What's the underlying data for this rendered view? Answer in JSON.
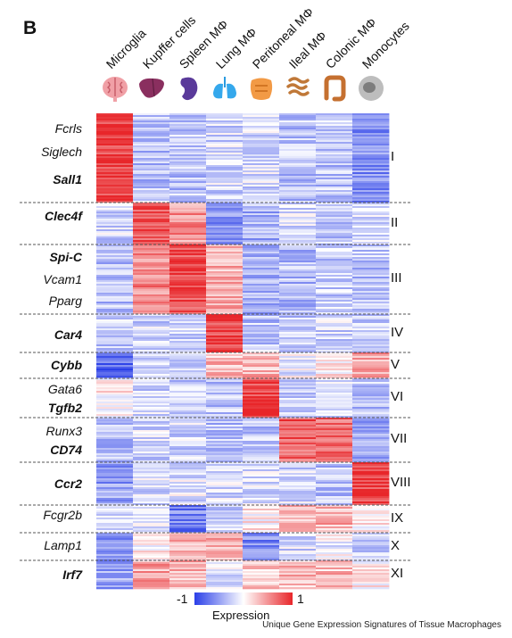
{
  "panel_letter": "B",
  "caption": "Unique Gene Expression Signatures of Tissue Macrophages",
  "chart_data": {
    "type": "heatmap",
    "title": "",
    "columns": [
      "Microglia",
      "Kupffer cells",
      "Spleen MΦ",
      "Lung MΦ",
      "Peritoneal MΦ",
      "Ileal MΦ",
      "Colonic MΦ",
      "Monocytes"
    ],
    "icons": [
      "brain-icon",
      "liver-icon",
      "spleen-icon",
      "lung-icon",
      "peritoneum-icon",
      "intestine-icon",
      "colon-icon",
      "monocyte-icon"
    ],
    "clusters": [
      {
        "name": "I",
        "genes": [
          {
            "name": "Fcrls",
            "bold": false
          },
          {
            "name": "Siglech",
            "bold": false
          },
          {
            "name": "Sall1",
            "bold": true
          }
        ],
        "mean_expression": [
          0.9,
          -0.3,
          -0.3,
          -0.2,
          -0.2,
          -0.3,
          -0.3,
          -0.55
        ]
      },
      {
        "name": "II",
        "genes": [
          {
            "name": "Clec4f",
            "bold": true
          }
        ],
        "mean_expression": [
          -0.2,
          0.8,
          0.5,
          -0.5,
          -0.4,
          -0.2,
          -0.3,
          -0.2
        ]
      },
      {
        "name": "III",
        "genes": [
          {
            "name": "Spi-C",
            "bold": true
          },
          {
            "name": "Vcam1",
            "bold": false
          },
          {
            "name": "Pparg",
            "bold": false
          }
        ],
        "mean_expression": [
          -0.3,
          0.55,
          0.85,
          0.35,
          -0.45,
          -0.35,
          -0.25,
          -0.3
        ]
      },
      {
        "name": "IV",
        "genes": [
          {
            "name": "Car4",
            "bold": true
          }
        ],
        "mean_expression": [
          -0.25,
          -0.2,
          -0.25,
          0.9,
          -0.3,
          -0.3,
          -0.2,
          -0.3
        ]
      },
      {
        "name": "V",
        "genes": [
          {
            "name": "Cybb",
            "bold": true
          }
        ],
        "mean_expression": [
          -0.75,
          -0.2,
          -0.2,
          0.3,
          0.35,
          -0.1,
          0.05,
          0.4
        ]
      },
      {
        "name": "VI",
        "genes": [
          {
            "name": "Gata6",
            "bold": false
          },
          {
            "name": "Tgfb2",
            "bold": true
          }
        ],
        "mean_expression": [
          0.05,
          -0.2,
          -0.3,
          -0.3,
          0.9,
          -0.3,
          -0.2,
          -0.3
        ]
      },
      {
        "name": "VII",
        "genes": [
          {
            "name": "Runx3",
            "bold": false
          },
          {
            "name": "CD74",
            "bold": true
          }
        ],
        "mean_expression": [
          -0.35,
          -0.2,
          -0.2,
          -0.3,
          -0.3,
          0.75,
          0.65,
          -0.4
        ]
      },
      {
        "name": "VIII",
        "genes": [
          {
            "name": "Ccr2",
            "bold": true
          }
        ],
        "mean_expression": [
          -0.5,
          -0.2,
          -0.15,
          -0.2,
          -0.2,
          -0.2,
          -0.3,
          0.9
        ]
      },
      {
        "name": "IX",
        "genes": [
          {
            "name": "Fcgr2b",
            "bold": false
          }
        ],
        "mean_expression": [
          -0.2,
          -0.1,
          -0.65,
          -0.25,
          0.1,
          0.3,
          0.35,
          0.1
        ]
      },
      {
        "name": "X",
        "genes": [
          {
            "name": "Lamp1",
            "bold": false
          }
        ],
        "mean_expression": [
          -0.5,
          0.1,
          0.3,
          0.4,
          -0.6,
          -0.2,
          -0.05,
          -0.2
        ]
      },
      {
        "name": "XI",
        "genes": [
          {
            "name": "Irf7",
            "bold": true
          }
        ],
        "mean_expression": [
          -0.45,
          0.4,
          0.35,
          -0.1,
          0.2,
          0.3,
          0.3,
          0.05
        ]
      }
    ],
    "colorbar": {
      "min": -1,
      "max": 1,
      "label": "Expression",
      "min_label": "-1",
      "max_label": "1",
      "colors": [
        "#2a3fe8",
        "#ffffff",
        "#e8262a"
      ]
    }
  }
}
